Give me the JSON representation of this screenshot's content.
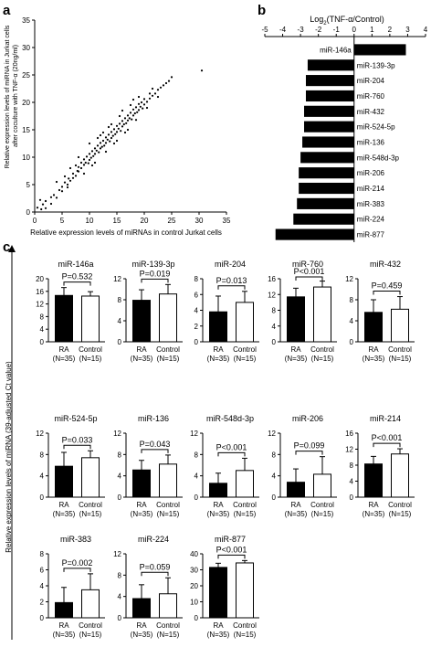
{
  "panel_labels": {
    "a": "a",
    "b": "b",
    "c": "c"
  },
  "chart_data": [
    {
      "panel": "a",
      "type": "scatter",
      "xlabel": "Relative expression levels of miRNAs in control Jurkat cells",
      "ylabel": "Relative expression levels of miRNA in Jurkat cells after coculture with TNF-α (20ng/ml)",
      "xlim": [
        0,
        35
      ],
      "ylim": [
        0,
        35
      ],
      "xticks": [
        "0",
        "5",
        "10",
        "15",
        "20",
        "25",
        "30",
        "35"
      ],
      "yticks": [
        "0",
        "5",
        "10",
        "15",
        "20",
        "25",
        "30",
        "35"
      ],
      "points": [
        [
          0.5,
          0.8
        ],
        [
          1.0,
          2.2
        ],
        [
          1.5,
          1.4
        ],
        [
          2.0,
          2.0
        ],
        [
          1.2,
          0.5
        ],
        [
          3.0,
          2.7
        ],
        [
          3.5,
          3.1
        ],
        [
          4.0,
          2.6
        ],
        [
          4.5,
          4.0
        ],
        [
          5.0,
          4.6
        ],
        [
          5.0,
          3.8
        ],
        [
          5.5,
          5.4
        ],
        [
          6.0,
          5.0
        ],
        [
          6.2,
          6.1
        ],
        [
          6.5,
          5.7
        ],
        [
          7.0,
          7.0
        ],
        [
          7.0,
          6.2
        ],
        [
          7.5,
          6.6
        ],
        [
          7.8,
          7.5
        ],
        [
          8.0,
          8.2
        ],
        [
          8.0,
          7.4
        ],
        [
          8.5,
          8.0
        ],
        [
          8.5,
          9.0
        ],
        [
          9.0,
          8.6
        ],
        [
          9.0,
          9.6
        ],
        [
          9.3,
          9.0
        ],
        [
          9.5,
          10.1
        ],
        [
          9.8,
          8.9
        ],
        [
          10.0,
          9.5
        ],
        [
          10.0,
          10.6
        ],
        [
          10.3,
          9.9
        ],
        [
          10.5,
          11.1
        ],
        [
          10.7,
          10.2
        ],
        [
          11.0,
          10.6
        ],
        [
          11.0,
          11.6
        ],
        [
          11.3,
          11.2
        ],
        [
          11.5,
          12.1
        ],
        [
          11.7,
          10.9
        ],
        [
          12.0,
          11.6
        ],
        [
          12.0,
          12.6
        ],
        [
          12.3,
          11.9
        ],
        [
          12.5,
          13.0
        ],
        [
          12.7,
          12.1
        ],
        [
          13.0,
          12.6
        ],
        [
          13.0,
          13.6
        ],
        [
          13.3,
          13.2
        ],
        [
          13.5,
          14.1
        ],
        [
          13.7,
          12.9
        ],
        [
          14.0,
          13.5
        ],
        [
          14.0,
          14.6
        ],
        [
          14.3,
          13.9
        ],
        [
          14.5,
          15.1
        ],
        [
          14.7,
          14.2
        ],
        [
          15.0,
          14.6
        ],
        [
          15.0,
          15.7
        ],
        [
          15.3,
          15.2
        ],
        [
          15.5,
          16.1
        ],
        [
          15.7,
          14.8
        ],
        [
          16.0,
          15.6
        ],
        [
          16.0,
          16.6
        ],
        [
          16.3,
          16.0
        ],
        [
          16.5,
          17.1
        ],
        [
          16.7,
          16.2
        ],
        [
          17.0,
          16.7
        ],
        [
          17.0,
          17.6
        ],
        [
          17.3,
          17.1
        ],
        [
          17.5,
          18.1
        ],
        [
          17.7,
          16.9
        ],
        [
          18.0,
          17.6
        ],
        [
          18.0,
          18.7
        ],
        [
          18.3,
          18.0
        ],
        [
          18.5,
          19.1
        ],
        [
          18.7,
          18.2
        ],
        [
          19.0,
          18.6
        ],
        [
          19.0,
          19.7
        ],
        [
          19.3,
          19.2
        ],
        [
          19.5,
          20.0
        ],
        [
          19.7,
          18.9
        ],
        [
          20.0,
          19.6
        ],
        [
          20.0,
          20.6
        ],
        [
          20.5,
          20.1
        ],
        [
          21.0,
          20.7
        ],
        [
          21.0,
          21.6
        ],
        [
          21.5,
          21.2
        ],
        [
          22.0,
          21.6
        ],
        [
          22.5,
          22.3
        ],
        [
          23.0,
          22.7
        ],
        [
          23.5,
          23.1
        ],
        [
          24.0,
          23.5
        ],
        [
          24.5,
          23.9
        ],
        [
          25.0,
          24.6
        ],
        [
          12.0,
          14.0
        ],
        [
          14.0,
          16.0
        ],
        [
          8.0,
          10.0
        ],
        [
          10.0,
          12.5
        ],
        [
          16.0,
          18.5
        ],
        [
          11.0,
          9.0
        ],
        [
          13.0,
          11.0
        ],
        [
          15.0,
          13.0
        ],
        [
          9.0,
          7.0
        ],
        [
          17.0,
          15.0
        ],
        [
          18.0,
          20.5
        ],
        [
          6.5,
          8.0
        ],
        [
          2.0,
          0.7
        ],
        [
          3.0,
          1.5
        ],
        [
          30.5,
          25.8
        ],
        [
          4.0,
          5.5
        ],
        [
          5.5,
          6.5
        ],
        [
          6.0,
          4.5
        ],
        [
          7.5,
          8.5
        ],
        [
          12.5,
          14.5
        ],
        [
          14.5,
          12.5
        ],
        [
          19.0,
          21.0
        ],
        [
          20.5,
          19.0
        ],
        [
          21.5,
          22.5
        ],
        [
          22.5,
          21.0
        ],
        [
          11.5,
          13.5
        ],
        [
          13.5,
          15.5
        ],
        [
          10.5,
          8.5
        ],
        [
          16.5,
          14.5
        ],
        [
          15.5,
          17.5
        ],
        [
          17.5,
          19.5
        ],
        [
          18.5,
          16.8
        ]
      ]
    },
    {
      "panel": "b",
      "type": "bar",
      "orientation": "horizontal",
      "xlabel": "Log2(TNF-α/Control)",
      "xlabel_main": "Log",
      "xlabel_sub": "2",
      "xlabel_rest": "(TNF-α/Control)",
      "xlim": [
        -5,
        4
      ],
      "xticks": [
        "-5",
        "-4",
        "-3",
        "-2",
        "-1",
        "0",
        "1",
        "2",
        "3",
        "4"
      ],
      "categories": [
        "miR-146a",
        "miR-139-3p",
        "miR-204",
        "miR-760",
        "miR-432",
        "miR-524-5p",
        "miR-136",
        "miR-548d-3p",
        "miR-206",
        "miR-214",
        "miR-383",
        "miR-224",
        "miR-877"
      ],
      "values": [
        2.9,
        -2.6,
        -2.7,
        -2.7,
        -2.8,
        -2.8,
        -2.9,
        -3.0,
        -3.1,
        -3.1,
        -3.2,
        -3.4,
        -4.4
      ]
    },
    {
      "panel": "c",
      "type": "bar",
      "ylabel": "Relative expression levels of miRNA (39-adjusted Ct value)",
      "group_labels": [
        "RA",
        "Control"
      ],
      "group_sublabels": [
        "(N=35)",
        "(N=15)"
      ],
      "subplots": [
        {
          "title": "miR-146a",
          "ylim": [
            0,
            20
          ],
          "yticks": [
            "0",
            "4",
            "8",
            "12",
            "16",
            "20"
          ],
          "values": [
            14.7,
            14.5
          ],
          "errors": [
            2.5,
            1.4
          ],
          "pvalue": "P=0.532"
        },
        {
          "title": "miR-139-3p",
          "ylim": [
            0,
            12
          ],
          "yticks": [
            "0",
            "4",
            "8",
            "12"
          ],
          "values": [
            7.9,
            9.1
          ],
          "errors": [
            2.0,
            1.8
          ],
          "pvalue": "P=0.019"
        },
        {
          "title": "miR-204",
          "ylim": [
            0,
            8
          ],
          "yticks": [
            "0",
            "2",
            "4",
            "6",
            "8"
          ],
          "values": [
            3.8,
            5.0
          ],
          "errors": [
            2.0,
            1.4
          ],
          "pvalue": "P=0.013"
        },
        {
          "title": "miR-760",
          "ylim": [
            0,
            16
          ],
          "yticks": [
            "0",
            "4",
            "8",
            "12",
            "16"
          ],
          "values": [
            11.4,
            13.9
          ],
          "errors": [
            2.2,
            1.5
          ],
          "pvalue": "P<0.001"
        },
        {
          "title": "miR-432",
          "ylim": [
            0,
            12
          ],
          "yticks": [
            "0",
            "4",
            "8",
            "12"
          ],
          "values": [
            5.6,
            6.2
          ],
          "errors": [
            2.4,
            2.4
          ],
          "pvalue": "P=0.459"
        },
        {
          "title": "miR-524-5p",
          "ylim": [
            0,
            12
          ],
          "yticks": [
            "0",
            "4",
            "8",
            "12"
          ],
          "values": [
            5.8,
            7.4
          ],
          "errors": [
            2.6,
            1.3
          ],
          "pvalue": "P=0.033"
        },
        {
          "title": "miR-136",
          "ylim": [
            0,
            12
          ],
          "yticks": [
            "0",
            "4",
            "8",
            "12"
          ],
          "values": [
            5.1,
            6.2
          ],
          "errors": [
            1.8,
            1.7
          ],
          "pvalue": "P=0.043"
        },
        {
          "title": "miR-548d-3p",
          "ylim": [
            0,
            12
          ],
          "yticks": [
            "0",
            "4",
            "8",
            "12"
          ],
          "values": [
            2.6,
            5.0
          ],
          "errors": [
            1.9,
            2.3
          ],
          "pvalue": "P<0.001"
        },
        {
          "title": "miR-206",
          "ylim": [
            0,
            12
          ],
          "yticks": [
            "0",
            "4",
            "8",
            "12"
          ],
          "values": [
            2.8,
            4.3
          ],
          "errors": [
            2.5,
            3.3
          ],
          "pvalue": "P=0.099"
        },
        {
          "title": "miR-214",
          "ylim": [
            0,
            16
          ],
          "yticks": [
            "0",
            "4",
            "8",
            "12",
            "16"
          ],
          "values": [
            8.3,
            10.8
          ],
          "errors": [
            1.9,
            1.3
          ],
          "pvalue": "P<0.001"
        },
        {
          "title": "miR-383",
          "ylim": [
            0,
            8
          ],
          "yticks": [
            "0",
            "2",
            "4",
            "6",
            "8"
          ],
          "values": [
            1.9,
            3.5
          ],
          "errors": [
            1.9,
            2.0
          ],
          "pvalue": "P=0.002"
        },
        {
          "title": "miR-224",
          "ylim": [
            0,
            12
          ],
          "yticks": [
            "0",
            "4",
            "8",
            "12"
          ],
          "values": [
            3.6,
            4.5
          ],
          "errors": [
            2.6,
            3.0
          ],
          "pvalue": "P=0.059"
        },
        {
          "title": "miR-877",
          "ylim": [
            0,
            40
          ],
          "yticks": [
            "0",
            "10",
            "20",
            "30",
            "40"
          ],
          "values": [
            31.5,
            34.3
          ],
          "errors": [
            2.6,
            1.5
          ],
          "pvalue": "P<0.001"
        }
      ]
    }
  ]
}
